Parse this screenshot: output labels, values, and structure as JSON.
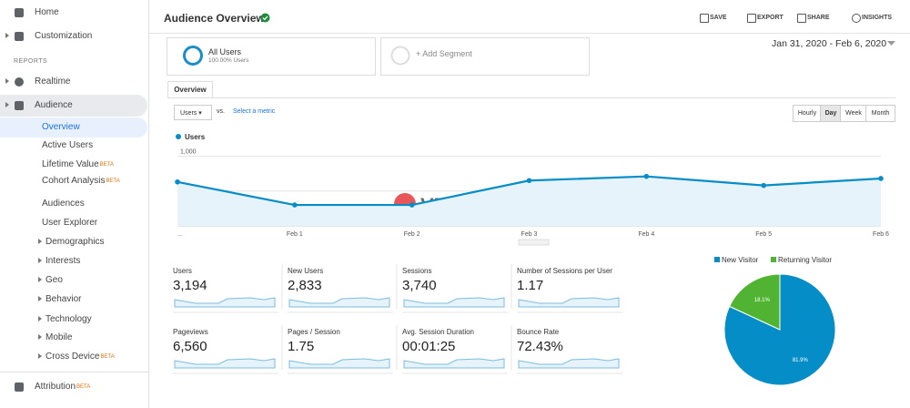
{
  "sidebar": {
    "section": "REPORTS",
    "items": [
      {
        "label": "Home"
      },
      {
        "label": "Customization"
      },
      {
        "label": "Realtime"
      },
      {
        "label": "Audience"
      },
      {
        "label": "Overview"
      },
      {
        "label": "Active Users"
      },
      {
        "label": "Lifetime Value",
        "badge": "BETA"
      },
      {
        "label": "Cohort Analysis",
        "badge": "BETA"
      },
      {
        "label": "Audiences"
      },
      {
        "label": "User Explorer"
      },
      {
        "label": "Demographics"
      },
      {
        "label": "Interests"
      },
      {
        "label": "Geo"
      },
      {
        "label": "Behavior"
      },
      {
        "label": "Technology"
      },
      {
        "label": "Mobile"
      },
      {
        "label": "Cross Device",
        "badge": "BETA"
      },
      {
        "label": "Attribution",
        "badge": "BETA"
      }
    ]
  },
  "header": {
    "title": "Audience Overview",
    "actions": [
      "SAVE",
      "EXPORT",
      "SHARE",
      "INSIGHTS"
    ]
  },
  "segments": {
    "name": "All Users",
    "share": "100.00% Users",
    "add": "+ Add Segment"
  },
  "date_range": "Jan 31, 2020 - Feb 6, 2020",
  "tab": "Overview",
  "controls": {
    "metric": "Users",
    "vs": "vs.",
    "select": "Select a metric",
    "granularity": [
      "Hourly",
      "Day",
      "Week",
      "Month"
    ]
  },
  "watermark": "VEIDC.COM",
  "line_chart": {
    "type": "line",
    "categories": [
      "...",
      "Feb 1",
      "Feb 2",
      "Feb 3",
      "Feb 4",
      "Feb 5",
      "Feb 6"
    ],
    "series": [
      {
        "name": "Users",
        "color": "#058dc7",
        "values": [
          630,
          300,
          300,
          650,
          710,
          580,
          680
        ]
      }
    ],
    "ylim": [
      0,
      1150
    ],
    "yticks": [
      {
        "value": 1000,
        "label": "1,000"
      },
      500
    ],
    "grid": true
  },
  "metrics": [
    {
      "name": "Users",
      "value": "3,194"
    },
    {
      "name": "New Users",
      "value": "2,833"
    },
    {
      "name": "Sessions",
      "value": "3,740"
    },
    {
      "name": "Number of Sessions per User",
      "value": "1.17"
    },
    {
      "name": "Pageviews",
      "value": "6,560"
    },
    {
      "name": "Pages / Session",
      "value": "1.75"
    },
    {
      "name": "Avg. Session Duration",
      "value": "00:01:25"
    },
    {
      "name": "Bounce Rate",
      "value": "72.43%"
    }
  ],
  "pie_chart": {
    "type": "pie",
    "categories": [
      "New Visitor",
      "Returning Visitor"
    ],
    "values": [
      81.9,
      18.1
    ],
    "value_labels": [
      "81.9%",
      "18.1%"
    ],
    "colors": [
      "#058dc7",
      "#50b432"
    ]
  }
}
